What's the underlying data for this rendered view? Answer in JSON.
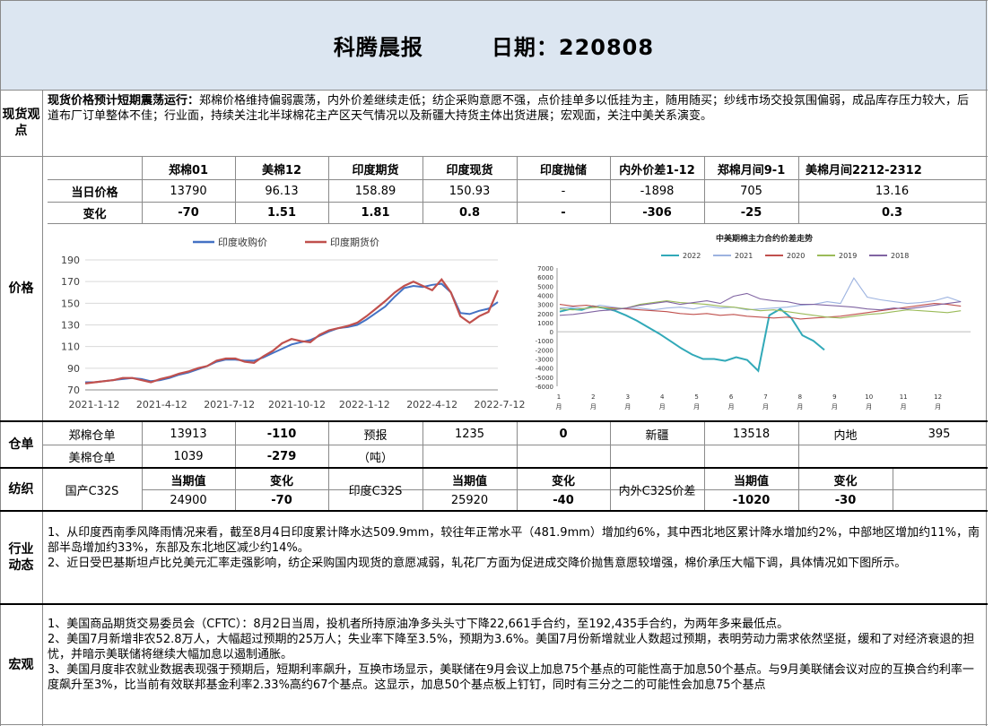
{
  "header": {
    "title": "科腾晨报",
    "date_label": "日期：220808"
  },
  "spot": {
    "label": "现货观点",
    "heading": "现货价格预计短期震荡运行：",
    "body": "郑棉价格维持偏弱震荡，内外价差继续走低；纺企采购意愿不强，点价挂单多以低挂为主，随用随买；纱线市场交投氛围偏弱，成品库存压力较大，后道布厂订单整体不佳；行业面，持续关注北半球棉花主产区天气情况以及新疆大持货主体出货进展；宏观面，关注中美关系演变。"
  },
  "price": {
    "label": "价格",
    "headers": [
      "郑棉01",
      "美棉12",
      "印度期货",
      "印度现货",
      "印度抛储",
      "内外价差1-12",
      "郑棉月间9-1",
      "美棉月间2212-2312"
    ],
    "row1_label": "当日价格",
    "row1": [
      "13790",
      "96.13",
      "158.89",
      "150.93",
      "-",
      "-1898",
      "705",
      "13.16"
    ],
    "row2_label": "变化",
    "row2": [
      "-70",
      "1.51",
      "1.81",
      "0.8",
      "-",
      "-306",
      "-25",
      "0.3"
    ]
  },
  "chart_india": {
    "type": "line",
    "legend": [
      "印度收购价",
      "印度期货价"
    ],
    "colors": [
      "#4472c4",
      "#c0504d"
    ],
    "x_ticks": [
      "2021-1-12",
      "2021-4-12",
      "2021-7-12",
      "2021-10-12",
      "2022-1-12",
      "2022-4-12",
      "2022-7-12"
    ],
    "y_ticks": [
      "190",
      "170",
      "150",
      "130",
      "110",
      "90",
      "70"
    ],
    "ylim": [
      70,
      190
    ],
    "series": [
      {
        "name": "印度收购价",
        "values": [
          77,
          77,
          78,
          79,
          80,
          81,
          80,
          78,
          79,
          81,
          84,
          86,
          89,
          92,
          96,
          98,
          98,
          97,
          97,
          100,
          104,
          108,
          112,
          114,
          116,
          120,
          124,
          127,
          128,
          130,
          135,
          141,
          147,
          156,
          164,
          166,
          165,
          167,
          168,
          160,
          141,
          140,
          143,
          145,
          151
        ]
      },
      {
        "name": "印度期货价",
        "values": [
          76,
          77,
          78,
          79,
          81,
          81,
          79,
          77,
          80,
          82,
          85,
          87,
          90,
          92,
          97,
          99,
          99,
          96,
          95,
          101,
          106,
          113,
          117,
          115,
          114,
          121,
          125,
          127,
          129,
          132,
          138,
          145,
          152,
          160,
          166,
          170,
          166,
          162,
          172,
          160,
          138,
          132,
          138,
          142,
          162
        ]
      }
    ]
  },
  "chart_spread": {
    "type": "line",
    "title": "中美期棉主力合约价差走势",
    "legend": [
      "2022",
      "2021",
      "2020",
      "2019",
      "2018"
    ],
    "colors": [
      "#31a9b8",
      "#9db3e0",
      "#c0504d",
      "#9bbb59",
      "#8064a2"
    ],
    "y_ticks": [
      "7000",
      "6000",
      "5000",
      "4000",
      "3000",
      "2000",
      "1000",
      "0",
      "-1000",
      "-2000",
      "-3000",
      "-4000",
      "-5000",
      "-6000"
    ],
    "ylim": [
      -6000,
      7000
    ],
    "x_ticks": [
      "1",
      "2",
      "3",
      "4",
      "5",
      "6",
      "7",
      "8",
      "9",
      "10",
      "11",
      "12"
    ],
    "x_unit": "月",
    "series": [
      {
        "name": "2022",
        "values": [
          2200,
          2500,
          2400,
          2800,
          2600,
          2300,
          1800,
          1200,
          500,
          -200,
          -1000,
          -1800,
          -2500,
          -3000,
          -3000,
          -3200,
          -2800,
          -3100,
          -4300,
          1800,
          2500,
          1500,
          -400,
          -1000,
          -2000
        ]
      },
      {
        "name": "2021",
        "values": [
          2600,
          2700,
          2500,
          2900,
          2700,
          2500,
          2600,
          2400,
          2600,
          2700,
          2500,
          2800,
          2600,
          2700,
          2400,
          2500,
          2600,
          2700,
          2900,
          3000,
          3300,
          3100,
          5900,
          3800,
          3500,
          3300,
          3100,
          3200,
          3400,
          3800,
          3300
        ]
      },
      {
        "name": "2020",
        "values": [
          3000,
          2800,
          2900,
          2700,
          2600,
          2500,
          2400,
          2300,
          2200,
          2000,
          1900,
          2000,
          1800,
          1900,
          1700,
          1600,
          1500,
          1600,
          1400,
          1500,
          1600,
          1700,
          1900,
          2100,
          2300,
          2500,
          2700,
          2900,
          3100,
          3000,
          2800
        ]
      },
      {
        "name": "2019",
        "values": [
          2500,
          2400,
          2600,
          2700,
          2500,
          2600,
          3000,
          3200,
          3400,
          3200,
          3100,
          3000,
          2800,
          2700,
          2500,
          2300,
          2400,
          2200,
          2000,
          1800,
          1600,
          1500,
          1700,
          1900,
          2000,
          2200,
          2400,
          2300,
          2200,
          2100,
          2300
        ]
      },
      {
        "name": "2018",
        "values": [
          1800,
          1900,
          2100,
          2300,
          2400,
          2600,
          2900,
          3100,
          3300,
          3000,
          3200,
          3400,
          3100,
          3900,
          4200,
          3600,
          3400,
          3300,
          3000,
          3000,
          2900,
          2800,
          2700,
          2500,
          2400,
          2600,
          2500,
          2700,
          2900,
          3100,
          3300
        ]
      }
    ]
  },
  "warehouse": {
    "label": "仓单",
    "zheng_label": "郑棉仓单",
    "zheng_value": "13913",
    "zheng_change": "-110",
    "forecast_label": "预报",
    "forecast_value": "1235",
    "forecast_change": "0",
    "xinjiang_label": "新疆",
    "xinjiang_value": "13518",
    "inland_label": "内地",
    "inland_value": "395",
    "us_label": "美棉仓单",
    "us_value": "1039",
    "us_change": "-279",
    "unit": "（吨）"
  },
  "textile": {
    "label": "纺织",
    "current_label": "当期值",
    "change_label": "变化",
    "dom_label": "国产C32S",
    "dom_value": "24900",
    "dom_change": "-70",
    "ind_label": "印度C32S",
    "ind_value": "25920",
    "ind_change": "-40",
    "spread_label": "内外C32S价差",
    "spread_value": "-1020",
    "spread_change": "-30"
  },
  "industry": {
    "label": "行业动态",
    "p1": "1、从印度西南季风降雨情况来看，截至8月4日印度累计降水达509.9mm，较往年正常水平（481.9mm）增加约6%，其中西北地区累计降水增加约2%，中部地区增加约11%，南部半岛增加约33%，东部及东北地区减少约14%。",
    "p2": "2、近日受巴基斯坦卢比兑美元汇率走强影响，纺企采购国内现货的意愿减弱，轧花厂方面为促进成交降价抛售意愿较增强，棉价承压大幅下调，具体情况如下图所示。"
  },
  "macro": {
    "label": "宏观",
    "p1": "1、美国商品期货交易委员会（CFTC）：8月2日当周，投机者所持原油净多头头寸下降22,661手合约，至192,435手合约，为两年多来最低点。",
    "p2": "2、美国7月新增非农52.8万人，大幅超过预期的25万人；失业率下降至3.5%，预期为3.6%。美国7月份新增就业人数超过预期，表明劳动力需求依然坚挺，缓和了对经济衰退的担忧，并暗示美联储将继续大幅加息以遏制通胀。",
    "p3": "3、美国月度非农就业数据表现强于预期后，短期利率飙升，互换市场显示，美联储在9月会议上加息75个基点的可能性高于加息50个基点。与9月美联储会议对应的互换合约利率一度飙升至3%，比当前有效联邦基金利率2.33%高约67个基点。这显示，加息50个基点板上钉钉，同时有三分之二的可能性会加息75个基点"
  }
}
